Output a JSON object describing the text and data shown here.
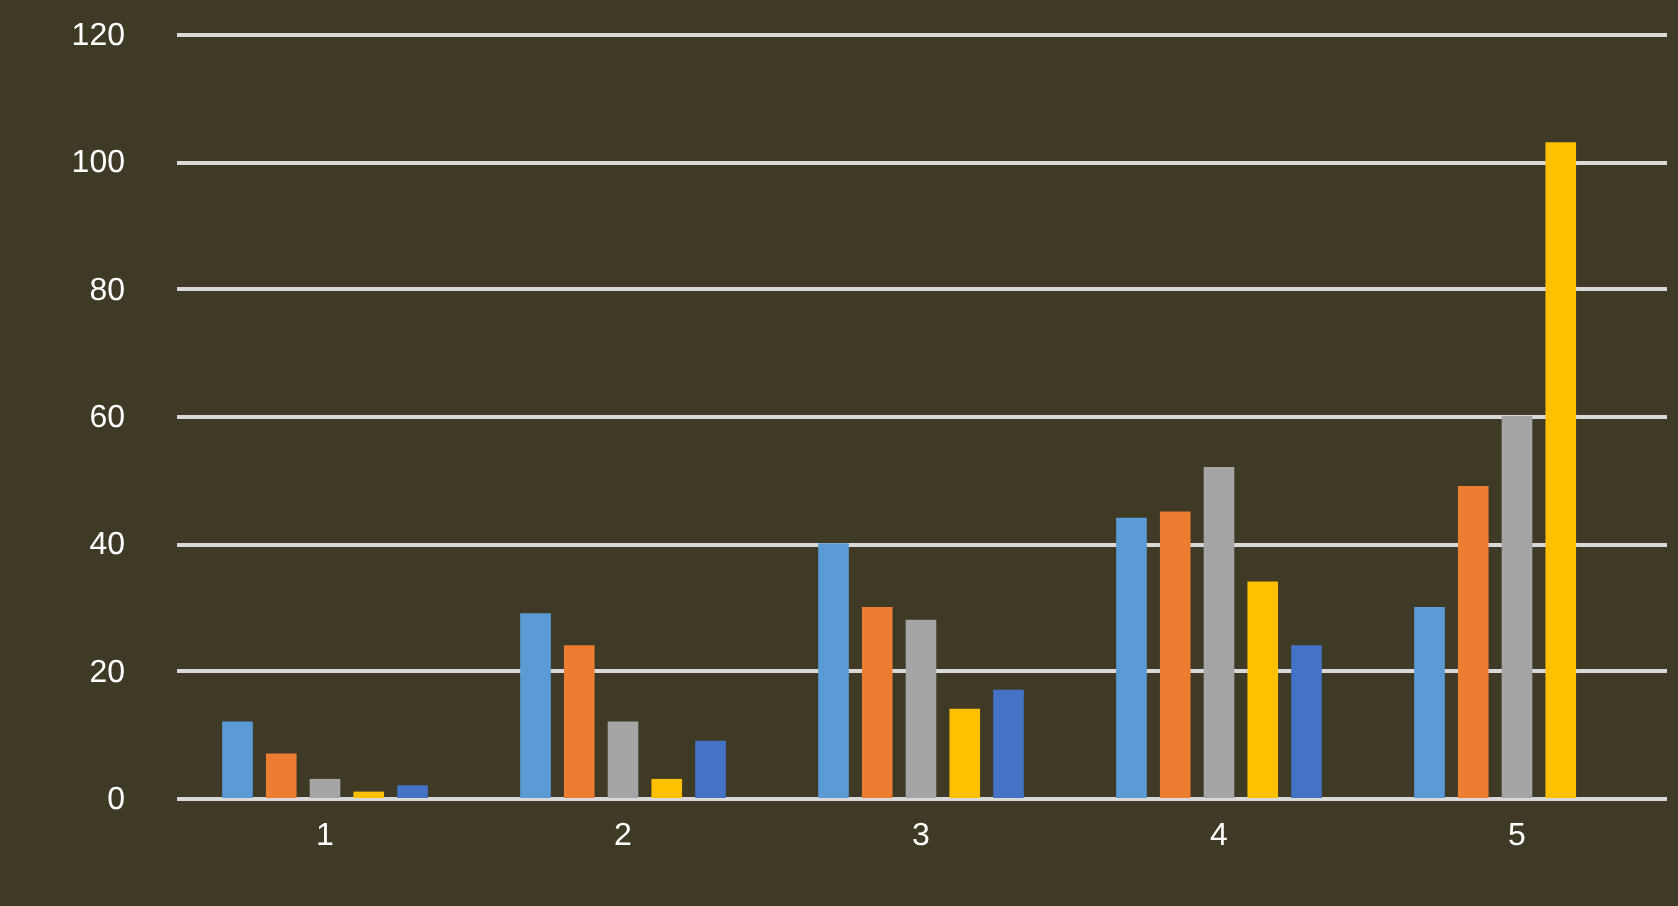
{
  "chart_data": {
    "type": "bar",
    "categories": [
      "1",
      "2",
      "3",
      "4",
      "5"
    ],
    "series": [
      {
        "color": "#5b9bd5",
        "values": [
          12,
          29,
          40,
          44,
          30
        ]
      },
      {
        "color": "#ed7d31",
        "values": [
          7,
          24,
          30,
          45,
          49
        ]
      },
      {
        "color": "#a5a5a5",
        "values": [
          3,
          12,
          28,
          52,
          60
        ]
      },
      {
        "color": "#ffc000",
        "values": [
          1,
          3,
          14,
          34,
          103
        ]
      },
      {
        "color": "#4472c4",
        "values": [
          2,
          9,
          17,
          24,
          null
        ]
      }
    ],
    "ylim": [
      0,
      120
    ],
    "yticks": [
      0,
      20,
      40,
      60,
      80,
      100,
      120
    ],
    "grid": "y"
  }
}
